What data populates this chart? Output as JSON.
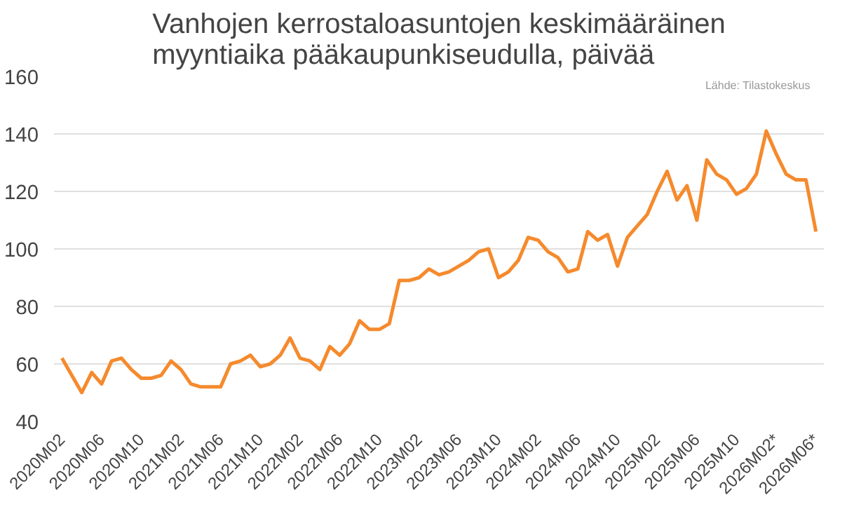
{
  "chart_data": {
    "type": "line",
    "title": "Vanhojen kerrostaloasuntojen keskimääräinen\nmyyntiaika pääkaupunkiseudulla, päivää",
    "annotations": [
      "Lähde: Tilastokeskus"
    ],
    "categories": [
      "2020M02",
      null,
      null,
      null,
      "2020M06",
      null,
      null,
      null,
      "2020M10",
      null,
      null,
      null,
      "2021M02",
      null,
      null,
      null,
      "2021M06",
      null,
      null,
      null,
      "2021M10",
      null,
      null,
      null,
      "2022M02",
      null,
      null,
      null,
      "2022M06",
      null,
      null,
      null,
      "2022M10",
      null,
      null,
      null,
      "2023M02",
      null,
      null,
      null,
      "2023M06",
      null,
      null,
      null,
      "2023M10",
      null,
      null,
      null,
      "2024M02",
      null,
      null,
      null,
      "2024M06",
      null,
      null,
      null,
      "2024M10",
      null,
      null,
      null,
      "2025M02",
      null,
      null,
      null,
      "2025M06",
      null,
      null,
      null,
      "2025M10",
      null,
      null,
      null,
      "2026M02*",
      null,
      null,
      null,
      "2026M06*"
    ],
    "series": [
      {
        "color": "#f58a2d",
        "values": [
          62,
          56,
          50,
          57,
          53,
          61,
          62,
          58,
          55,
          55,
          56,
          61,
          58,
          53,
          52,
          52,
          52,
          60,
          61,
          63,
          59,
          60,
          63,
          69,
          62,
          61,
          58,
          66,
          63,
          67,
          75,
          72,
          72,
          74,
          89,
          89,
          90,
          93,
          91,
          92,
          94,
          96,
          99,
          100,
          90,
          92,
          96,
          104,
          103,
          99,
          97,
          92,
          93,
          106,
          103,
          105,
          94,
          104,
          108,
          112,
          120,
          127,
          117,
          122,
          110,
          131,
          126,
          124,
          119,
          121,
          126,
          141,
          133,
          126,
          124,
          124,
          106
        ]
      }
    ],
    "ylim": [
      40,
      160
    ],
    "yticks": [
      40,
      60,
      80,
      100,
      120,
      140,
      160
    ],
    "grid": "y",
    "marker": "none",
    "line_style": "solid"
  }
}
